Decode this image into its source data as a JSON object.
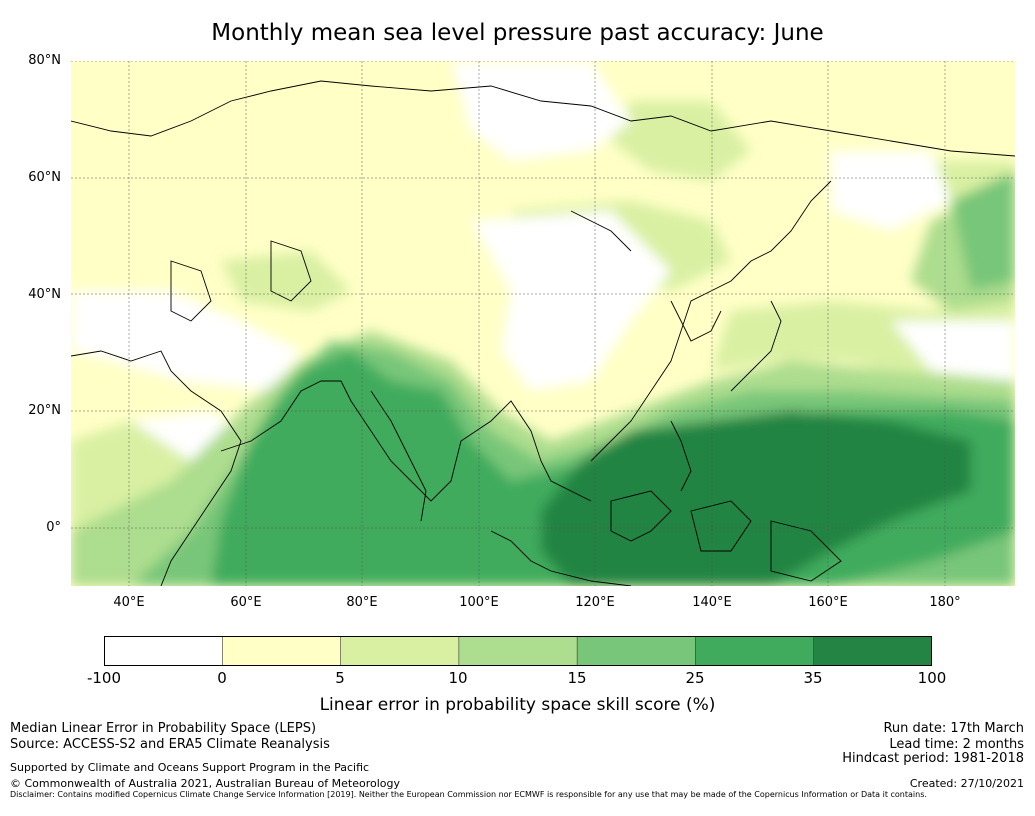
{
  "title": "Monthly mean sea level pressure past accuracy: June",
  "map": {
    "projection": "equirectangular",
    "lon_range": [
      30,
      192
    ],
    "lat_range": [
      -10,
      80
    ],
    "graticule": true
  },
  "axes": {
    "lat_ticks": [
      "80°N",
      "60°N",
      "40°N",
      "20°N",
      "0°"
    ],
    "lon_ticks": [
      "40°E",
      "60°E",
      "80°E",
      "100°E",
      "120°E",
      "140°E",
      "160°E",
      "180°"
    ]
  },
  "legend": {
    "label": "Linear error in probability space skill score (%)",
    "bin_colors": [
      "#ffffff",
      "#ffffc6",
      "#d9f0a3",
      "#addd8e",
      "#78c679",
      "#41ab5d",
      "#238443"
    ],
    "tick_labels": [
      "-100",
      "0",
      "5",
      "10",
      "15",
      "25",
      "35",
      "100"
    ]
  },
  "footer": {
    "left": [
      "Median Linear Error in Probability Space (LEPS)",
      "Source: ACCESS-S2 and ERA5 Climate Reanalysis",
      "Supported by Climate and Oceans Support Program in the Pacific",
      "© Commonwealth of Australia 2021, Australian Bureau of Meteorology"
    ],
    "right": [
      "Run date: 17th March",
      "Lead time: 2 months",
      "Hindcast period: 1981-2018",
      "Created: 27/10/2021"
    ],
    "disclaimer": "Disclaimer: Contains modified Copernicus Climate Change Service Information [2019]. Neither the European Commission nor ECMWF is responsible for any use that may be made of the Copernicus Information or Data it contains."
  }
}
